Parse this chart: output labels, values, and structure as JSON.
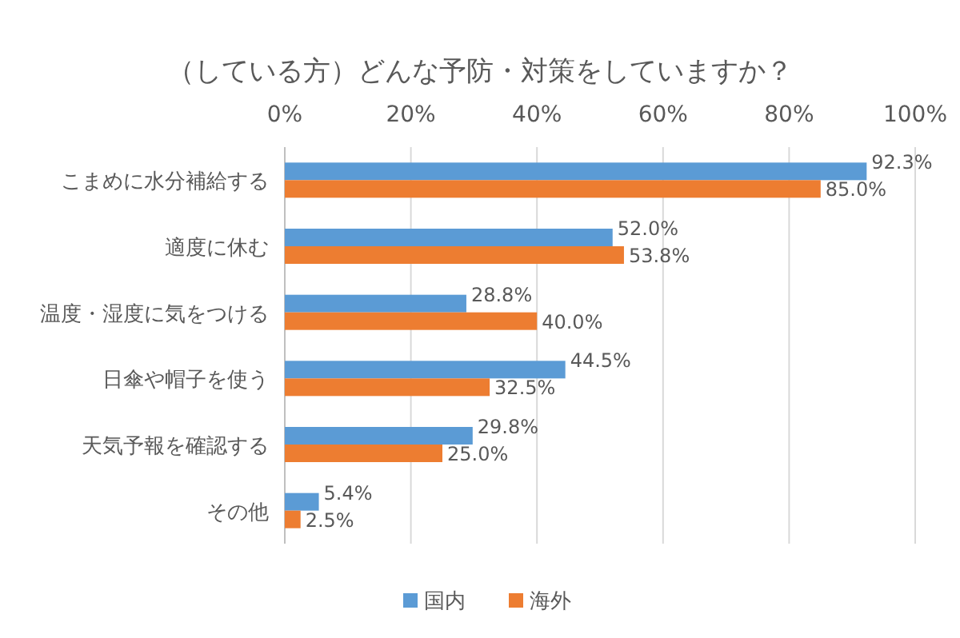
{
  "chart_data": {
    "type": "bar",
    "orientation": "horizontal",
    "title": "（している方）どんな予防・対策をしていますか？",
    "categories": [
      "こまめに水分補給する",
      "適度に休む",
      "温度・湿度に気をつける",
      "日傘や帽子を使う",
      "天気予報を確認する",
      "その他"
    ],
    "series": [
      {
        "name": "国内",
        "color": "#5b9bd5",
        "values": [
          92.3,
          52.0,
          28.8,
          44.5,
          29.8,
          5.4
        ],
        "value_labels": [
          "92.3%",
          "52.0%",
          "28.8%",
          "44.5%",
          "29.8%",
          "5.4%"
        ]
      },
      {
        "name": "海外",
        "color": "#ed7d31",
        "values": [
          85.0,
          53.8,
          40.0,
          32.5,
          25.0,
          2.5
        ],
        "value_labels": [
          "85.0%",
          "53.8%",
          "40.0%",
          "32.5%",
          "25.0%",
          "2.5%"
        ]
      }
    ],
    "xlim": [
      0,
      100
    ],
    "xticks": [
      {
        "value": 0,
        "label": "0%"
      },
      {
        "value": 20,
        "label": "20%"
      },
      {
        "value": 40,
        "label": "40%"
      },
      {
        "value": 60,
        "label": "60%"
      },
      {
        "value": 80,
        "label": "80%"
      },
      {
        "value": 100,
        "label": "100%"
      }
    ],
    "grid": "x",
    "legend": "bottom"
  }
}
